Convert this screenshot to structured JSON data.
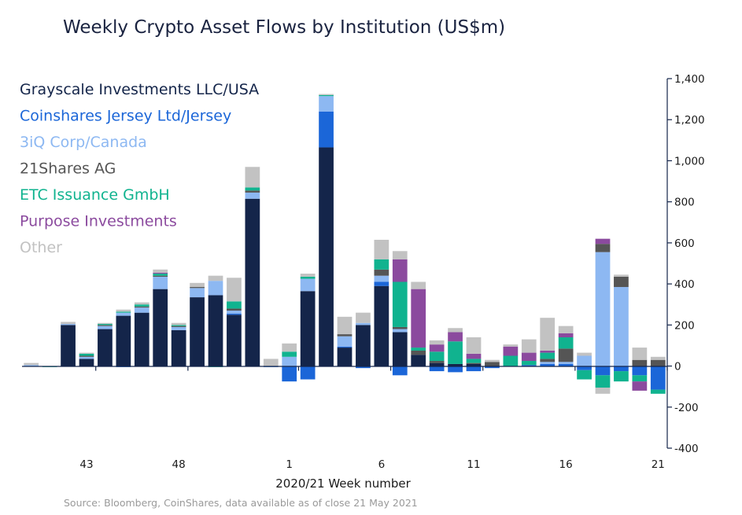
{
  "chart_data": {
    "type": "bar",
    "stacked": true,
    "title": "Weekly Crypto Asset Flows by Institution (US$m)",
    "xlabel": "2020/21 Week number",
    "ylabel": "",
    "ylim": [
      -400,
      1400
    ],
    "yticks": [
      1400,
      1200,
      1000,
      800,
      600,
      400,
      200,
      0,
      -200,
      -400
    ],
    "ytick_labels": [
      "1,400",
      "1,200",
      "1,000",
      "800",
      "600",
      "400",
      "200",
      "0",
      "-200",
      "-400"
    ],
    "y_axis_position": "right",
    "legend_position": "top-left",
    "grid": false,
    "categories": [
      "40",
      "41",
      "42",
      "43",
      "44",
      "45",
      "46",
      "47",
      "48",
      "49",
      "50",
      "51",
      "52",
      "53",
      "1",
      "2",
      "3",
      "4",
      "5",
      "6",
      "7",
      "8",
      "9",
      "10",
      "11",
      "12",
      "13",
      "14",
      "15",
      "16",
      "17",
      "18",
      "19",
      "20",
      "21"
    ],
    "x_tick_labels": [
      {
        "category": "43",
        "label": "43"
      },
      {
        "category": "48",
        "label": "48"
      },
      {
        "category": "1",
        "label": "1"
      },
      {
        "category": "6",
        "label": "6"
      },
      {
        "category": "11",
        "label": "11"
      },
      {
        "category": "16",
        "label": "16"
      },
      {
        "category": "21",
        "label": "21"
      }
    ],
    "series": [
      {
        "name": "Grayscale Investments LLC/USA",
        "color": "#14254a",
        "values": [
          0,
          0,
          200,
          35,
          180,
          245,
          260,
          375,
          175,
          335,
          345,
          250,
          815,
          0,
          0,
          365,
          1065,
          90,
          200,
          390,
          165,
          55,
          15,
          10,
          10,
          0,
          0,
          0,
          0,
          0,
          0,
          0,
          0,
          0,
          0
        ]
      },
      {
        "name": "Coinshares Jersey Ltd/Jersey",
        "color": "#1b66d8",
        "values": [
          0,
          0,
          0,
          0,
          0,
          -5,
          0,
          0,
          0,
          0,
          0,
          5,
          0,
          -5,
          -75,
          -65,
          175,
          5,
          -10,
          20,
          -45,
          0,
          -25,
          -30,
          -25,
          -10,
          0,
          5,
          10,
          10,
          -20,
          -45,
          -25,
          -45,
          -115
        ]
      },
      {
        "name": "3iQ Corp/Canada",
        "color": "#8db8f2",
        "values": [
          5,
          0,
          5,
          10,
          15,
          15,
          25,
          60,
          15,
          45,
          70,
          15,
          30,
          0,
          45,
          60,
          75,
          50,
          10,
          30,
          15,
          0,
          0,
          0,
          0,
          0,
          0,
          0,
          10,
          10,
          50,
          555,
          385,
          0,
          0
        ]
      },
      {
        "name": "21Shares AG",
        "color": "#555555",
        "values": [
          0,
          0,
          0,
          5,
          5,
          0,
          5,
          5,
          5,
          5,
          0,
          10,
          10,
          0,
          0,
          0,
          0,
          10,
          0,
          30,
          10,
          20,
          10,
          0,
          5,
          20,
          0,
          0,
          15,
          65,
          0,
          40,
          50,
          30,
          30
        ]
      },
      {
        "name": "ETC Issuance GmbH",
        "color": "#10b38f",
        "values": [
          0,
          -5,
          0,
          10,
          5,
          5,
          10,
          10,
          5,
          0,
          -5,
          35,
          15,
          0,
          25,
          10,
          5,
          0,
          0,
          50,
          220,
          15,
          45,
          110,
          20,
          0,
          50,
          20,
          30,
          55,
          -45,
          -60,
          -50,
          -30,
          -20
        ]
      },
      {
        "name": "Purpose Investments",
        "color": "#8b4a9e",
        "values": [
          0,
          0,
          0,
          0,
          0,
          0,
          0,
          5,
          0,
          0,
          0,
          0,
          0,
          0,
          0,
          0,
          0,
          0,
          0,
          0,
          110,
          285,
          35,
          45,
          25,
          0,
          45,
          40,
          10,
          20,
          0,
          25,
          0,
          -45,
          0
        ]
      },
      {
        "name": "Other",
        "color": "#c2c2c2",
        "values": [
          10,
          0,
          10,
          5,
          5,
          10,
          10,
          15,
          10,
          20,
          25,
          115,
          100,
          35,
          40,
          15,
          5,
          85,
          50,
          95,
          40,
          35,
          20,
          20,
          80,
          10,
          10,
          65,
          160,
          35,
          15,
          -30,
          10,
          60,
          15
        ]
      }
    ]
  },
  "source_note": "Source: Bloomberg, CoinShares, data available as of close 21 May 2021"
}
